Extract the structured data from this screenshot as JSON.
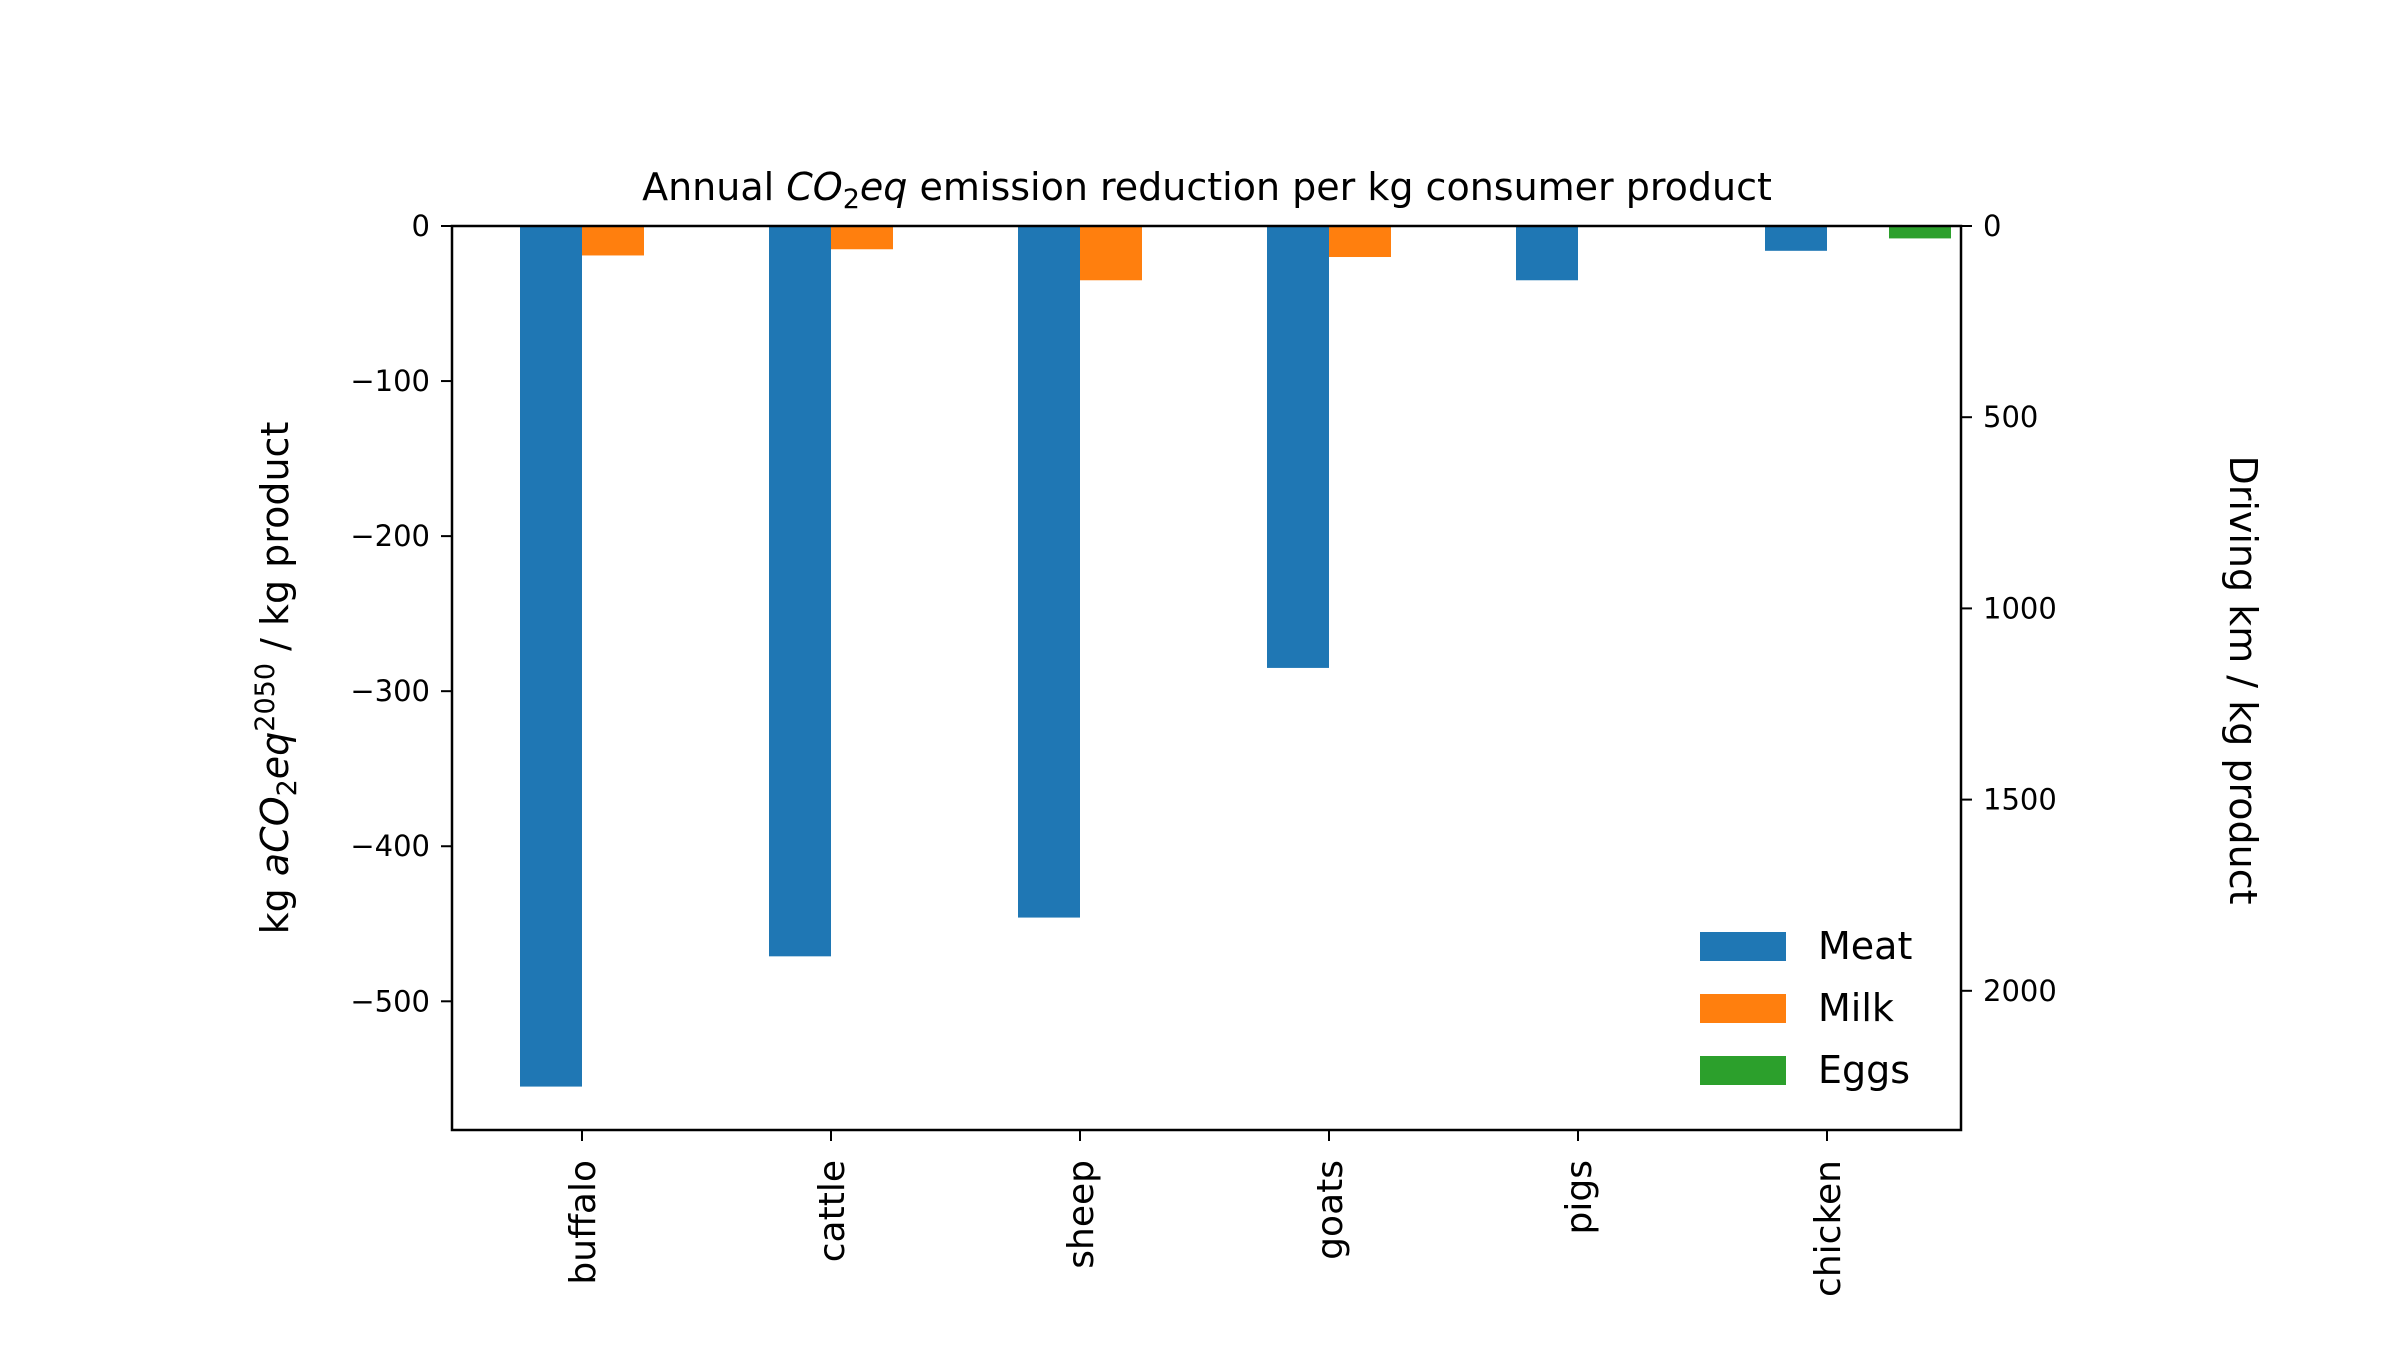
{
  "chart_data": {
    "type": "bar",
    "title": {
      "prefix": "Annual ",
      "chem_main": "CO",
      "chem_sub": "2",
      "chem_tail": "eq",
      "suffix": " emission reduction per kg consumer product"
    },
    "ylabel": {
      "prefix": "kg ",
      "var_a": "aCO",
      "var_sub": "2",
      "var_eq": "eq",
      "var_sup": "2050",
      "suffix": " / kg product"
    },
    "ylabel_right": "Driving km / kg product",
    "categories": [
      "buffalo",
      "cattle",
      "sheep",
      "goats",
      "pigs",
      "chicken"
    ],
    "series": [
      {
        "name": "Meat",
        "color": "#1f77b4",
        "values": [
          -555,
          -471,
          -446,
          -285,
          -35,
          -16
        ]
      },
      {
        "name": "Milk",
        "color": "#ff7f0e",
        "values": [
          -19,
          -15,
          -35,
          -20,
          null,
          null
        ]
      },
      {
        "name": "Eggs",
        "color": "#2ca02c",
        "values": [
          null,
          null,
          null,
          null,
          null,
          -8
        ]
      }
    ],
    "ylim": [
      -583,
      0
    ],
    "yticks": [
      0,
      -100,
      -200,
      -300,
      -400,
      -500
    ],
    "ytick_labels": [
      "0",
      "−100",
      "−200",
      "−300",
      "−400",
      "−500"
    ],
    "ylim_right": [
      0,
      2364
    ],
    "yticks_right": [
      0,
      500,
      1000,
      1500,
      2000
    ],
    "ytick_labels_right": [
      "0",
      "500",
      "1000",
      "1500",
      "2000"
    ],
    "legend_position": "lower-right",
    "grid": false
  }
}
